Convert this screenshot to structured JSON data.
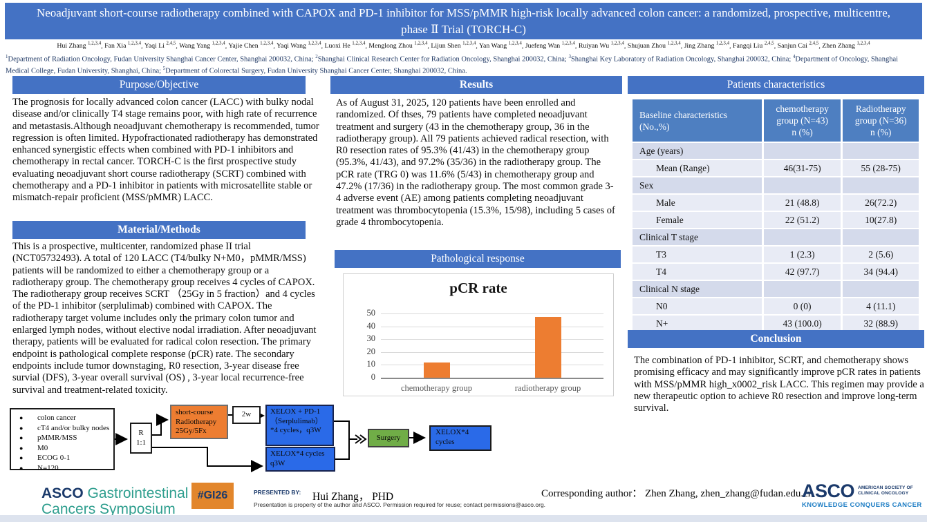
{
  "title": "Neoadjuvant short-course radiotherapy combined with CAPOX and PD-1 inhibitor for MSS/pMMR high-risk locally advanced colon cancer: a randomized, prospective, multicentre, phase Ⅱ Trial (TORCH-C)",
  "authors": [
    {
      "name": "Hui Zhang",
      "sup": "1,2,3,4"
    },
    {
      "name": "Fan Xia",
      "sup": "1,2,3,4"
    },
    {
      "name": "Yaqi Li",
      "sup": "2,4,5"
    },
    {
      "name": "Wang Yang",
      "sup": "1,2,3,4"
    },
    {
      "name": "Yajie Chen",
      "sup": "1,2,3,4"
    },
    {
      "name": "Yaqi Wang",
      "sup": "1,2,3,4"
    },
    {
      "name": "Luoxi He",
      "sup": "1,2,3,4"
    },
    {
      "name": "Menglong Zhou",
      "sup": "1,2,3,4"
    },
    {
      "name": "Lijun Shen",
      "sup": "1,2,3,4"
    },
    {
      "name": "Yan Wang",
      "sup": "1,2,3,4"
    },
    {
      "name": "Juefeng Wan",
      "sup": "1,2,3,4"
    },
    {
      "name": "Ruiyan Wu",
      "sup": "1,2,3,4"
    },
    {
      "name": "Shujuan Zhou",
      "sup": "1,2,3,4"
    },
    {
      "name": "Jing Zhang",
      "sup": "1,2,3,4"
    },
    {
      "name": "Fangqi Liu",
      "sup": "2,4,5"
    },
    {
      "name": "Sanjun Cai",
      "sup": "2,4,5"
    },
    {
      "name": "Zhen Zhang",
      "sup": "1,2,3,4"
    }
  ],
  "affiliations": [
    {
      "sup": "1",
      "text": "Department of Radiation Oncology, Fudan University Shanghai Cancer Center, Shanghai 200032, China;"
    },
    {
      "sup": "2",
      "text": "Shanghai Clinical Research Center for Radiation Oncology, Shanghai 200032, China;"
    },
    {
      "sup": "3",
      "text": "Shanghai Key Laboratory of Radiation Oncology, Shanghai 200032, China;"
    },
    {
      "sup": "4",
      "text": "Department of Oncology, Shanghai Medical College, Fudan University, Shanghai, China;"
    },
    {
      "sup": "5",
      "text": "Department of Colorectal Surgery, Fudan University Shanghai Cancer Center, Shanghai 200032, China."
    }
  ],
  "sections": {
    "purpose": {
      "heading": "Purpose/Objective",
      "body": "The prognosis for locally advanced colon cancer (LACC) with bulky nodal disease and/or clinically T4 stage remains poor, with high rate of recurrence and metastasis.Although neoadjuvant chemotherapy is recommended, tumor regression is often limited. Hypofractionated radiotherapy has demonstrated enhanced synergistic effects when combined with PD-1 inhibitors and chemotherapy in rectal cancer. TORCH-C is the first prospective study evaluating neoadjuvant short course radiotherapy (SCRT) combined with chemotherapy and a PD-1 inhibitor in patients with microsatellite stable or mismatch-repair proficient (MSS/pMMR) LACC."
    },
    "methods": {
      "heading": "Material/Methods",
      "body": " This is a prospective, multicenter, randomized phase II trial (NCT05732493). A total of 120 LACC (T4/bulky N+M0，pMMR/MSS) patients will be randomized to either a chemotherapy group or a radiotherapy group. The chemotherapy group receives 4 cycles of CAPOX. The radiotherapy group receives SCRT （25Gy in 5 fraction）and 4 cycles of the PD-1 inhibitor (serplulimab) combined with CAPOX. The radiotherapy target volume includes only the primary colon tumor and enlarged lymph nodes, without elective nodal irradiation. After neoadjuvant therapy, patients will be evaluated for radical colon resection. The primary endpoint is pathological complete response (pCR) rate. The secondary endpoints include tumor downstaging, R0 resection, 3-year disease free survial (DFS), 3-year overall survival (OS) , 3-year local recurrence-free survival and treatment-related toxicity."
    },
    "results": {
      "heading": "Results",
      "body": "As of August 31, 2025, 120 patients have been enrolled and randomized. Of thses, 79 patients have completed neoadjuvant treatment and surgery (43 in the chemotherapy group, 36 in the radiotherapy group). All 79 patients achieved radical resection, with R0 resection rates of 95.3% (41/43) in the chemotherapy group (95.3%, 41/43), and 97.2% (35/36) in the radiotherapy group. The pCR rate (TRG 0) was 11.6% (5/43) in chemotherapy group and 47.2% (17/36) in the radiotherapy group. The most common grade 3-4 adverse event (AE) among patients completing neoadjuvant treatment was thrombocytopenia (15.3%, 15/98), including 5 cases of grade 4 thrombocytopenia."
    },
    "pathological": {
      "heading": "Pathological response"
    },
    "patients": {
      "heading": "Patients characteristics"
    },
    "conclusion": {
      "heading": "Conclusion",
      "body": "The combination of PD-1 inhibitor, SCRT, and chemotherapy shows promising efficacy and may significantly improve pCR rates in patients with MSS/pMMR high_x0002_risk LACC. This regimen may provide a new therapeutic option to achieve R0 resection and improve long-term survival."
    }
  },
  "chart_data": {
    "type": "bar",
    "title": "pCR rate",
    "categories": [
      "chemotherapy group",
      "radiotherapy group"
    ],
    "values": [
      11.6,
      47.2
    ],
    "ylim": [
      0,
      50
    ],
    "yticks": [
      0,
      10,
      20,
      30,
      40,
      50
    ],
    "grid": true,
    "legend": false,
    "bar_color": "#ED7D31"
  },
  "patients_table": {
    "headers": [
      "Baseline characteristics\n(No.,%)",
      "chemotherapy\ngroup  (N=43)\nn (%)",
      "Radiotherapy\ngroup (N=36)\nn (%)"
    ],
    "rows": [
      {
        "label": "Age (years)",
        "c1": "",
        "c2": "",
        "category": true
      },
      {
        "label": "Mean (Range)",
        "c1": "46(31-75)",
        "c2": "55 (28-75)",
        "category": false
      },
      {
        "label": "Sex",
        "c1": "",
        "c2": "",
        "category": true
      },
      {
        "label": "Male",
        "c1": "21 (48.8)",
        "c2": "26(72.2)",
        "category": false
      },
      {
        "label": "Female",
        "c1": "22 (51.2)",
        "c2": "10(27.8)",
        "category": false
      },
      {
        "label": "Clinical T stage",
        "c1": "",
        "c2": "",
        "category": true
      },
      {
        "label": "T3",
        "c1": "1 (2.3)",
        "c2": "2 (5.6)",
        "category": false
      },
      {
        "label": "T4",
        "c1": "42 (97.7)",
        "c2": "34 (94.4)",
        "category": false
      },
      {
        "label": "Clinical N stage",
        "c1": "",
        "c2": "",
        "category": true
      },
      {
        "label": "N0",
        "c1": "0 (0)",
        "c2": "4 (11.1)",
        "category": false
      },
      {
        "label": "N+",
        "c1": "43 (100.0)",
        "c2": "32 (88.9)",
        "category": false
      }
    ]
  },
  "diagram": {
    "eligibility_items": [
      "colon cancer",
      "cT4 and/or bulky nodes",
      "pMMR/MSS",
      "M0",
      "ECOG 0-1",
      "N=120"
    ],
    "randomization": "R\n1:1",
    "scrt_box": "short-course\nRadiotherapy\n25Gy/5Fx",
    "interval_label": "2w",
    "arm1_box": "XELOX + PD-1\n（Serplulimab）\n*4 cycles，q3W",
    "arm2_box": "XELOX*4 cycles\nq3W",
    "surgery_box": "Surgery",
    "adjuvant_box": "XELOX*4\ncycles"
  },
  "footer": {
    "symposium_brand": "ASCO",
    "symposium_line1": "Gastrointestinal",
    "symposium_line2": "Cancers Symposium",
    "hashtag": "#GI26",
    "presented_by_label": "PRESENTED BY:",
    "presenter": "Hui Zhang，  PHD",
    "permission_note": "Presentation is property of the author and ASCO. Permission required for reuse; contact permissions@asco.org.",
    "corresponding": "Corresponding author：  Zhen Zhang,  zhen_zhang@fudan.edu.cn",
    "asco_name": "ASCO",
    "asco_society_line1": "AMERICAN SOCIETY OF",
    "asco_society_line2": "CLINICAL ONCOLOGY",
    "asco_tagline": "KNOWLEDGE CONQUERS CANCER"
  },
  "colors": {
    "accent_blue": "#4472C4",
    "table_header_blue": "#4E7FC1",
    "bar_orange": "#ED7D31",
    "diagram_box_blue": "#2A6AE8",
    "diagram_box_orange": "#ED7D31",
    "diagram_box_green": "#70AD47",
    "asco_navy": "#1B3A6B",
    "asco_teal": "#2E9E8E",
    "asco_tagline_blue": "#1D7DC4",
    "gi26_orange": "#E2862C"
  }
}
